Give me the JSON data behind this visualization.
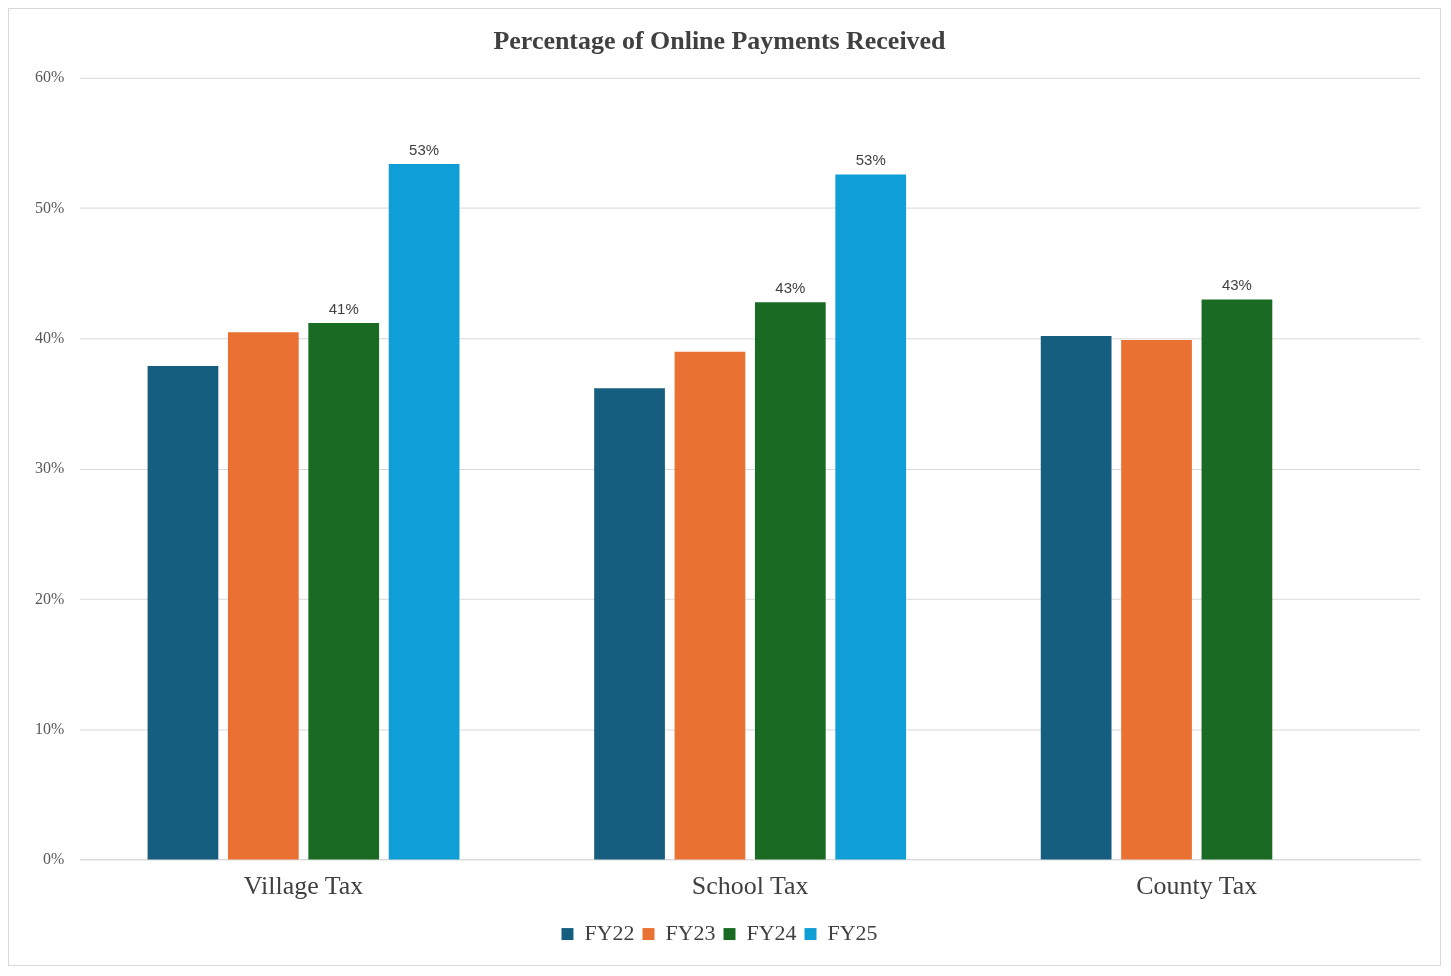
{
  "chart_data": {
    "type": "bar",
    "title": "Percentage of Online Payments Received",
    "categories": [
      "Village Tax",
      "School Tax",
      "County Tax"
    ],
    "series": [
      {
        "name": "FY22",
        "color": "#155e80",
        "values": [
          37.9,
          36.2,
          40.2
        ]
      },
      {
        "name": "FY23",
        "color": "#e97132",
        "values": [
          40.5,
          39.0,
          39.9
        ]
      },
      {
        "name": "FY24",
        "color": "#196b24",
        "values": [
          41.2,
          42.8,
          43.0
        ],
        "value_labels": [
          "41%",
          "43%",
          "43%"
        ]
      },
      {
        "name": "FY25",
        "color": "#0f9ed5",
        "values": [
          53.4,
          52.6,
          null
        ],
        "value_labels": [
          "53%",
          "53%",
          null
        ]
      }
    ],
    "ylim": [
      0,
      60
    ],
    "yticks": [
      {
        "value": 0,
        "label": "0%"
      },
      {
        "value": 10,
        "label": "10%"
      },
      {
        "value": 20,
        "label": "20%"
      },
      {
        "value": 30,
        "label": "30%"
      },
      {
        "value": 40,
        "label": "40%"
      },
      {
        "value": 50,
        "label": "50%"
      },
      {
        "value": 60,
        "label": "60%"
      }
    ],
    "grid": "y",
    "legend": "bottom"
  }
}
